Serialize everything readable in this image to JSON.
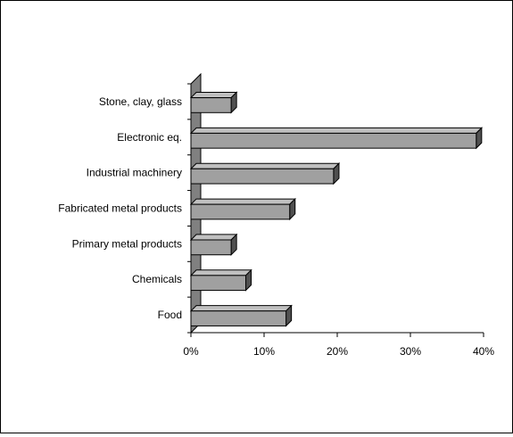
{
  "chart_data": {
    "type": "bar",
    "orientation": "horizontal",
    "style": "3d",
    "title": "",
    "xlabel": "",
    "ylabel": "",
    "categories": [
      "Stone, clay, glass",
      "Electronic eq.",
      "Industrial machinery",
      "Fabricated metal products",
      "Primary metal products",
      "Chemicals",
      "Food"
    ],
    "values": [
      5.5,
      39,
      19.5,
      13.5,
      5.5,
      7.5,
      13
    ],
    "xlim": [
      0,
      40
    ],
    "xticks": [
      "0%",
      "10%",
      "20%",
      "30%",
      "40%"
    ],
    "grid": false,
    "legend": "none",
    "colors": {
      "bar_face": "#a0a0a0",
      "bar_top": "#c0c0c0",
      "bar_side": "#505050",
      "wall": "#808080",
      "outline": "#000000"
    }
  }
}
